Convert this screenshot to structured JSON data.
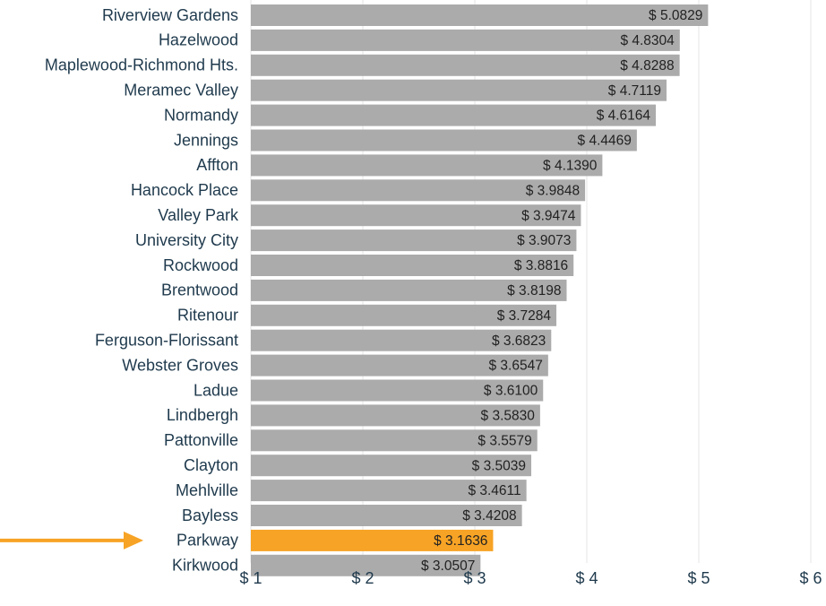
{
  "chart_data": {
    "type": "bar",
    "orientation": "horizontal",
    "categories": [
      "Riverview Gardens",
      "Hazelwood",
      "Maplewood-Richmond Hts.",
      "Meramec Valley",
      "Normandy",
      "Jennings",
      "Affton",
      "Hancock Place",
      "Valley Park",
      "University City",
      "Rockwood",
      "Brentwood",
      "Ritenour",
      "Ferguson-Florissant",
      "Webster Groves",
      "Ladue",
      "Lindbergh",
      "Pattonville",
      "Clayton",
      "Mehlville",
      "Bayless",
      "Parkway",
      "Kirkwood"
    ],
    "values": [
      5.0829,
      4.8304,
      4.8288,
      4.7119,
      4.6164,
      4.4469,
      4.139,
      3.9848,
      3.9474,
      3.9073,
      3.8816,
      3.8198,
      3.7284,
      3.6823,
      3.6547,
      3.61,
      3.583,
      3.5579,
      3.5039,
      3.4611,
      3.4208,
      3.1636,
      3.0507
    ],
    "value_labels": [
      "$ 5.0829",
      "$ 4.8304",
      "$ 4.8288",
      "$ 4.7119",
      "$ 4.6164",
      "$ 4.4469",
      "$ 4.1390",
      "$ 3.9848",
      "$ 3.9474",
      "$ 3.9073",
      "$ 3.8816",
      "$ 3.8198",
      "$ 3.7284",
      "$ 3.6823",
      "$ 3.6547",
      "$ 3.6100",
      "$ 3.5830",
      "$ 3.5579",
      "$ 3.5039",
      "$ 3.4611",
      "$ 3.4208",
      "$ 3.1636",
      "$ 3.0507"
    ],
    "x_ticks": [
      1,
      2,
      3,
      4,
      5,
      6
    ],
    "x_tick_labels": [
      "$ 1",
      "$ 2",
      "$ 3",
      "$ 4",
      "$ 5",
      "$ 6"
    ],
    "xlim": [
      1,
      6
    ],
    "title": "",
    "xlabel": "",
    "ylabel": "",
    "grid": true,
    "highlight_category": "Parkway",
    "highlight_marker": "arrow pointing right at highlighted bar",
    "colors": {
      "bar": "#ababab",
      "highlight": "#f7a325",
      "arrow": "#f7a325",
      "label_text": "#1f3a4d",
      "value_text": "#222222",
      "grid": "#e6e6e6"
    }
  }
}
